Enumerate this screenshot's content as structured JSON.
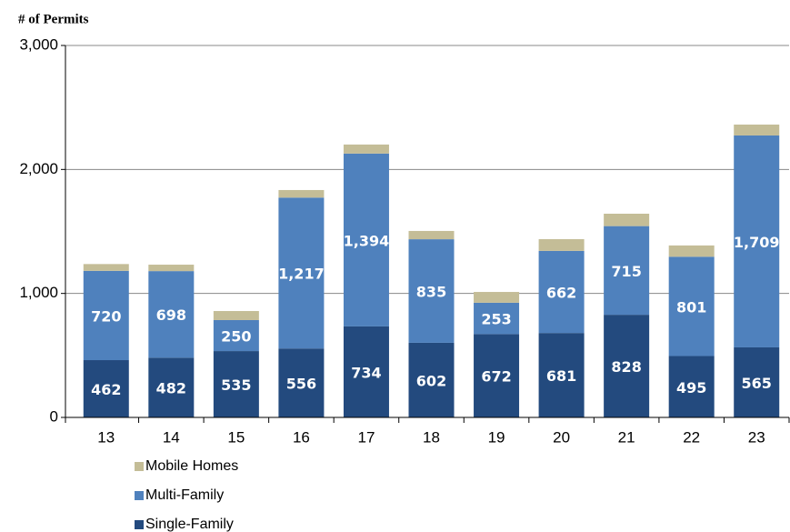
{
  "chart_data": {
    "type": "stacked_bar",
    "y_axis_label": "# of Permits",
    "categories": [
      "13",
      "14",
      "15",
      "16",
      "17",
      "18",
      "19",
      "20",
      "21",
      "22",
      "23"
    ],
    "series": [
      {
        "name": "Single-Family",
        "color": "#234a7e",
        "values": [
          462,
          482,
          535,
          556,
          734,
          602,
          672,
          681,
          828,
          495,
          565
        ]
      },
      {
        "name": "Multi-Family",
        "color": "#4f81bd",
        "values": [
          720,
          698,
          250,
          1217,
          1394,
          835,
          253,
          662,
          715,
          801,
          1709
        ],
        "value_labels": [
          "720",
          "698",
          "250",
          "1,217",
          "1,394",
          "835",
          "253",
          "662",
          "715",
          "801",
          "1,709"
        ]
      },
      {
        "name": "Mobile Homes",
        "color": "#c4bd97",
        "values": [
          55,
          52,
          73,
          61,
          73,
          67,
          87,
          95,
          100,
          91,
          88
        ]
      }
    ],
    "ylim": [
      0,
      3000
    ],
    "yticks": [
      0,
      {
        "value": 1000,
        "label": "1,000"
      },
      {
        "value": 2000,
        "label": "2,000"
      },
      {
        "value": 3000,
        "label": "3,000"
      }
    ],
    "grid": true
  }
}
